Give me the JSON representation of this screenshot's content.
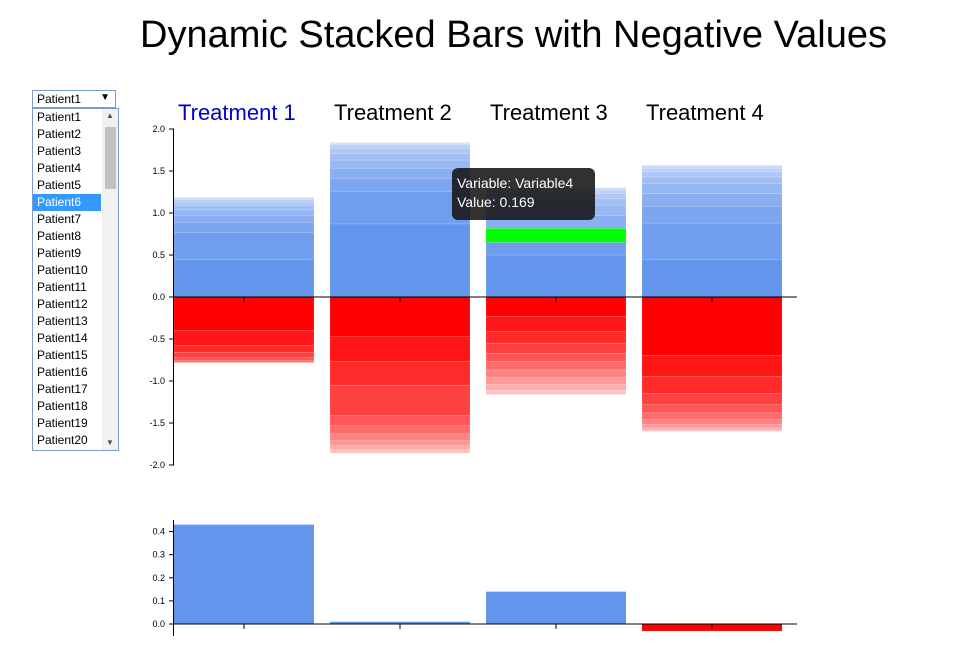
{
  "title": "Dynamic Stacked Bars with Negative Values",
  "patient_select": {
    "selected_value": "Patient1",
    "highlighted_option": "Patient6",
    "options": [
      "Patient1",
      "Patient2",
      "Patient3",
      "Patient4",
      "Patient5",
      "Patient6",
      "Patient7",
      "Patient8",
      "Patient9",
      "Patient10",
      "Patient11",
      "Patient12",
      "Patient13",
      "Patient14",
      "Patient15",
      "Patient16",
      "Patient17",
      "Patient18",
      "Patient19",
      "Patient20"
    ]
  },
  "tooltip": {
    "variable_text": "Variable: Variable4",
    "value_text": "Value: 0.169"
  },
  "colors": {
    "positive": "#6495ed",
    "negative": "#ff0000",
    "highlight": "#00ff00",
    "active_label": "#0000cc"
  },
  "chart_data": [
    {
      "type": "bar",
      "stacked": true,
      "categories": [
        "Treatment 1",
        "Treatment 2",
        "Treatment 3",
        "Treatment 4"
      ],
      "active_category": "Treatment 1",
      "ylim": [
        -2.0,
        2.0
      ],
      "yticks": [
        "2.0",
        "1.5",
        "1.0",
        "0.5",
        "0.0",
        "-0.5",
        "-1.0",
        "-1.5",
        "-2.0"
      ],
      "positive_totals": [
        1.19,
        1.84,
        1.3,
        1.57
      ],
      "negative_totals": [
        -0.78,
        -1.86,
        -1.16,
        -1.6
      ],
      "positive_segments": [
        [
          0.45,
          0.32,
          0.12,
          0.08,
          0.07,
          0.05,
          0.04,
          0.03,
          0.02,
          0.01
        ],
        [
          0.87,
          0.39,
          0.15,
          0.12,
          0.1,
          0.08,
          0.06,
          0.04,
          0.02,
          0.01
        ],
        [
          0.5,
          0.15,
          0.169,
          0.15,
          0.12,
          0.08,
          0.06,
          0.04,
          0.03,
          0.001
        ],
        [
          0.45,
          0.43,
          0.2,
          0.15,
          0.12,
          0.08,
          0.06,
          0.04,
          0.03,
          0.01
        ]
      ],
      "negative_segments": [
        [
          -0.4,
          -0.18,
          -0.08,
          -0.06,
          -0.04,
          -0.02
        ],
        [
          -0.47,
          -0.3,
          -0.28,
          -0.36,
          -0.12,
          -0.1,
          -0.08,
          -0.06,
          -0.05,
          -0.04
        ],
        [
          -0.23,
          -0.18,
          -0.14,
          -0.12,
          -0.1,
          -0.1,
          -0.09,
          -0.08,
          -0.07,
          -0.05
        ],
        [
          -0.7,
          -0.25,
          -0.2,
          -0.13,
          -0.1,
          -0.08,
          -0.06,
          -0.04,
          -0.03,
          -0.01
        ]
      ],
      "highlighted_segment": {
        "category": "Treatment 3",
        "variable": "Variable4",
        "value": 0.169
      }
    },
    {
      "type": "bar",
      "categories": [
        "Treatment 1",
        "Treatment 2",
        "Treatment 3",
        "Treatment 4"
      ],
      "values": [
        0.43,
        0.01,
        0.14,
        -0.03
      ],
      "ylim": [
        -0.05,
        0.45
      ],
      "yticks": [
        "0.4",
        "0.3",
        "0.2",
        "0.1",
        "0.0"
      ]
    }
  ]
}
